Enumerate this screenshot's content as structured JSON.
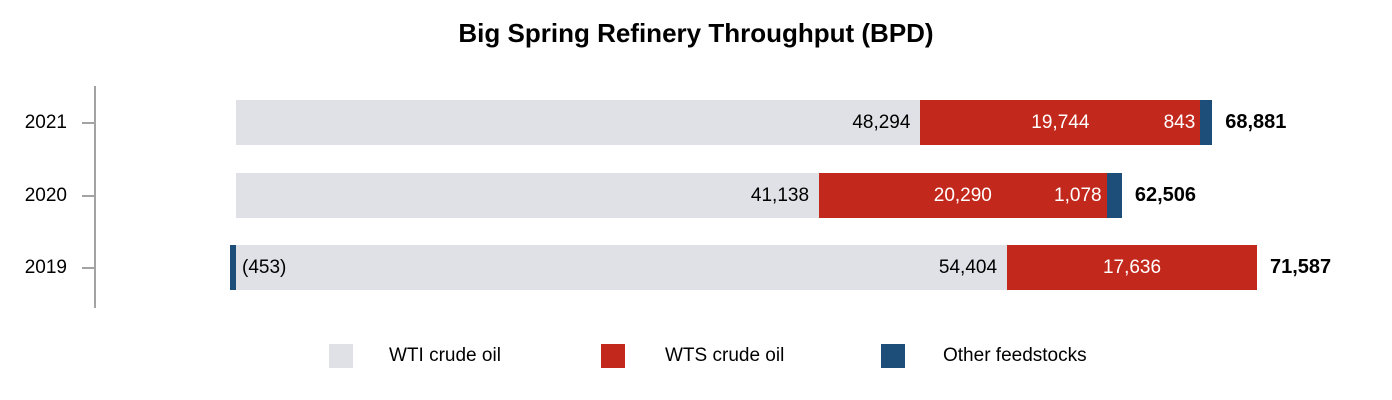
{
  "title": "Big Spring Refinery Throughput (BPD)",
  "chart_data": {
    "type": "bar",
    "orientation": "horizontal",
    "stacked": true,
    "title": "Big Spring Refinery Throughput (BPD)",
    "categories": [
      "2021",
      "2020",
      "2019"
    ],
    "series": [
      {
        "name": "WTI crude oil",
        "color": "#e0e1e6",
        "label_color": "#000000",
        "values": [
          48294,
          41138,
          54404
        ]
      },
      {
        "name": "WTS crude oil",
        "color": "#c3281c",
        "label_color": "#ffffff",
        "values": [
          19744,
          20290,
          17636
        ]
      },
      {
        "name": "Other feedstocks",
        "color": "#1d4e79",
        "label_color": "#ffffff",
        "values": [
          843,
          1078,
          -453
        ]
      }
    ],
    "totals": [
      68881,
      62506,
      71587
    ],
    "value_label_format": "thousands-comma, negatives in parentheses",
    "xlim": [
      -10000,
      80000
    ],
    "grid": false,
    "legend_position": "bottom",
    "axis_color": "#a3a3a3",
    "text_color": "#000000",
    "background_color": "#ffffff"
  }
}
